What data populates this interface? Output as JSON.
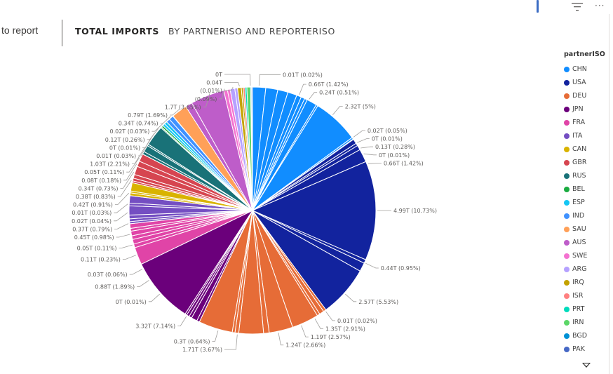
{
  "nav": {
    "back_label": "to report"
  },
  "tabs": [
    {
      "label": "TOTAL IMPORTS"
    },
    {
      "label": "BY PARTNERISO AND REPORTERISO"
    }
  ],
  "icons": {
    "info": "info-icon",
    "filter": "filter-icon",
    "more": "more-options-icon",
    "more_glyph": "···"
  },
  "chart_data": {
    "type": "pie",
    "title": "",
    "legend_title": "partnerISO",
    "legend_position": "right",
    "legend": [
      {
        "name": "CHN",
        "color": "#118DFF"
      },
      {
        "name": "USA",
        "color": "#12239E"
      },
      {
        "name": "DEU",
        "color": "#E66C37"
      },
      {
        "name": "JPN",
        "color": "#6B007B"
      },
      {
        "name": "FRA",
        "color": "#E044A7"
      },
      {
        "name": "ITA",
        "color": "#744EC2"
      },
      {
        "name": "CAN",
        "color": "#D9B300"
      },
      {
        "name": "GBR",
        "color": "#D64550"
      },
      {
        "name": "RUS",
        "color": "#197278"
      },
      {
        "name": "BEL",
        "color": "#1AAB40"
      },
      {
        "name": "ESP",
        "color": "#15C6F4"
      },
      {
        "name": "IND",
        "color": "#4092FF"
      },
      {
        "name": "SAU",
        "color": "#FFA058"
      },
      {
        "name": "AUS",
        "color": "#BE5DC9"
      },
      {
        "name": "SWE",
        "color": "#F472D0"
      },
      {
        "name": "ARG",
        "color": "#B5A1FF"
      },
      {
        "name": "IRQ",
        "color": "#C4A200"
      },
      {
        "name": "ISR",
        "color": "#FF8080"
      },
      {
        "name": "PRT",
        "color": "#00DBBC"
      },
      {
        "name": "IRN",
        "color": "#5BD667"
      },
      {
        "name": "BGD",
        "color": "#0091D5"
      },
      {
        "name": "PAK",
        "color": "#4668C5"
      }
    ],
    "labels": [
      {
        "text": "0T",
        "side": "top",
        "angle": -91
      },
      {
        "text": "0.04T",
        "side": "top",
        "angle": -96
      },
      {
        "text": "(0.01%)",
        "side": "top",
        "angle": -99
      },
      {
        "text": "(0.09%)",
        "side": "top",
        "angle": -103
      },
      {
        "text": "1.7T (3.65%)",
        "side": "left",
        "angle": -110
      },
      {
        "text": "0.79T (1.69%)",
        "side": "left",
        "angle": -126
      },
      {
        "text": "0.34T (0.74%)",
        "side": "left",
        "angle": -131
      },
      {
        "text": "0.02T (0.03%)",
        "side": "left",
        "angle": -136
      },
      {
        "text": "0.12T (0.26%)",
        "side": "left",
        "angle": -139
      },
      {
        "text": "0T (0.01%)",
        "side": "left",
        "angle": -142
      },
      {
        "text": "0.01T (0.03%)",
        "side": "left",
        "angle": -145
      },
      {
        "text": "1.03T (2.21%)",
        "side": "left",
        "angle": -150
      },
      {
        "text": "0.05T (0.11%)",
        "side": "left",
        "angle": -155
      },
      {
        "text": "0.08T (0.18%)",
        "side": "left",
        "angle": -158
      },
      {
        "text": "0.34T (0.73%)",
        "side": "left",
        "angle": -162
      },
      {
        "text": "0.38T (0.83%)",
        "side": "left",
        "angle": -166
      },
      {
        "text": "0.42T (0.91%)",
        "side": "left",
        "angle": -172
      },
      {
        "text": "0.01T (0.03%)",
        "side": "left",
        "angle": -177
      },
      {
        "text": "0.02T (0.04%)",
        "side": "left",
        "angle": 179
      },
      {
        "text": "0.37T (0.79%)",
        "side": "left",
        "angle": 174
      },
      {
        "text": "0.45T (0.98%)",
        "side": "left",
        "angle": 169
      },
      {
        "text": "0.05T (0.11%)",
        "side": "left",
        "angle": 164
      },
      {
        "text": "0.11T (0.23%)",
        "side": "left",
        "angle": 159
      },
      {
        "text": "0.03T (0.06%)",
        "side": "left",
        "angle": 152
      },
      {
        "text": "0.88T (1.89%)",
        "side": "left",
        "angle": 146
      },
      {
        "text": "0T (0.01%)",
        "side": "left",
        "angle": 138
      },
      {
        "text": "3.32T (7.14%)",
        "side": "left",
        "angle": 122
      },
      {
        "text": "0.3T (0.64%)",
        "side": "left",
        "angle": 106
      },
      {
        "text": "1.71T (3.67%)",
        "side": "left",
        "angle": 97
      },
      {
        "text": "1.24T (2.66%)",
        "side": "right",
        "angle": 78
      },
      {
        "text": "1.19T (2.57%)",
        "side": "right",
        "angle": 67
      },
      {
        "text": "1.35T (2.91%)",
        "side": "right",
        "angle": 60
      },
      {
        "text": "0.01T (0.02%)",
        "side": "right",
        "angle": 54
      },
      {
        "text": "2.57T (5.53%)",
        "side": "right",
        "angle": 42
      },
      {
        "text": "0.44T (0.95%)",
        "side": "right",
        "angle": 25
      },
      {
        "text": "4.99T (10.73%)",
        "side": "right",
        "angle": 0
      },
      {
        "text": "0.66T (1.42%)",
        "side": "right",
        "angle": -22
      },
      {
        "text": "0T (0.01%)",
        "side": "right",
        "angle": -27
      },
      {
        "text": "0.13T (0.28%)",
        "side": "right",
        "angle": -30
      },
      {
        "text": "0T (0.01%)",
        "side": "right",
        "angle": -33
      },
      {
        "text": "0.02T (0.05%)",
        "side": "right",
        "angle": -36
      },
      {
        "text": "2.32T (5%)",
        "side": "right",
        "angle": -50
      },
      {
        "text": "0.24T (0.51%)",
        "side": "right",
        "angle": -63
      },
      {
        "text": "0.66T (1.42%)",
        "side": "right",
        "angle": -68
      },
      {
        "text": "0.01T (0.02%)",
        "side": "right",
        "angle": -87
      }
    ],
    "slices": [
      {
        "name": "CHN",
        "value": 1.42,
        "color": "#118DFF"
      },
      {
        "name": "CHN",
        "value": 1.3,
        "color": "#118DFF"
      },
      {
        "name": "CHN",
        "value": 1.1,
        "color": "#118DFF"
      },
      {
        "name": "CHN",
        "value": 1.0,
        "color": "#118DFF"
      },
      {
        "name": "CHN",
        "value": 0.51,
        "color": "#118DFF"
      },
      {
        "name": "CHN",
        "value": 0.4,
        "color": "#118DFF"
      },
      {
        "name": "CHN",
        "value": 0.3,
        "color": "#118DFF"
      },
      {
        "name": "CHN",
        "value": 1.1,
        "color": "#118DFF"
      },
      {
        "name": "CHN",
        "value": 0.2,
        "color": "#118DFF"
      },
      {
        "name": "CHN",
        "value": 5.0,
        "color": "#118DFF"
      },
      {
        "name": "CHN",
        "value": 0.2,
        "color": "#118DFF"
      },
      {
        "name": "USA",
        "value": 0.05,
        "color": "#12239E"
      },
      {
        "name": "USA",
        "value": 0.5,
        "color": "#12239E"
      },
      {
        "name": "USA",
        "value": 0.28,
        "color": "#12239E"
      },
      {
        "name": "USA",
        "value": 0.5,
        "color": "#12239E"
      },
      {
        "name": "USA",
        "value": 1.42,
        "color": "#12239E"
      },
      {
        "name": "USA",
        "value": 10.73,
        "color": "#12239E"
      },
      {
        "name": "USA",
        "value": 0.4,
        "color": "#12239E"
      },
      {
        "name": "USA",
        "value": 0.95,
        "color": "#12239E"
      },
      {
        "name": "USA",
        "value": 5.53,
        "color": "#12239E"
      },
      {
        "name": "DEU",
        "value": 0.3,
        "color": "#E66C37"
      },
      {
        "name": "DEU",
        "value": 0.5,
        "color": "#E66C37"
      },
      {
        "name": "DEU",
        "value": 0.3,
        "color": "#E66C37"
      },
      {
        "name": "DEU",
        "value": 2.91,
        "color": "#E66C37"
      },
      {
        "name": "DEU",
        "value": 2.57,
        "color": "#E66C37"
      },
      {
        "name": "DEU",
        "value": 0.6,
        "color": "#E66C37"
      },
      {
        "name": "DEU",
        "value": 2.66,
        "color": "#E66C37"
      },
      {
        "name": "DEU",
        "value": 0.4,
        "color": "#E66C37"
      },
      {
        "name": "DEU",
        "value": 0.3,
        "color": "#E66C37"
      },
      {
        "name": "DEU",
        "value": 3.67,
        "color": "#E66C37"
      },
      {
        "name": "JPN",
        "value": 0.3,
        "color": "#6B007B"
      },
      {
        "name": "JPN",
        "value": 0.64,
        "color": "#6B007B"
      },
      {
        "name": "JPN",
        "value": 0.3,
        "color": "#6B007B"
      },
      {
        "name": "JPN",
        "value": 0.3,
        "color": "#6B007B"
      },
      {
        "name": "JPN",
        "value": 0.2,
        "color": "#6B007B"
      },
      {
        "name": "JPN",
        "value": 7.14,
        "color": "#6B007B"
      },
      {
        "name": "FRA",
        "value": 1.89,
        "color": "#E044A7"
      },
      {
        "name": "FRA",
        "value": 0.4,
        "color": "#E044A7"
      },
      {
        "name": "FRA",
        "value": 0.5,
        "color": "#E044A7"
      },
      {
        "name": "FRA",
        "value": 0.4,
        "color": "#E044A7"
      },
      {
        "name": "FRA",
        "value": 0.5,
        "color": "#E044A7"
      },
      {
        "name": "FRA",
        "value": 0.3,
        "color": "#E044A7"
      },
      {
        "name": "FRA",
        "value": 0.5,
        "color": "#E044A7"
      },
      {
        "name": "ITA",
        "value": 0.23,
        "color": "#744EC2"
      },
      {
        "name": "ITA",
        "value": 0.3,
        "color": "#744EC2"
      },
      {
        "name": "ITA",
        "value": 0.4,
        "color": "#744EC2"
      },
      {
        "name": "ITA",
        "value": 0.98,
        "color": "#744EC2"
      },
      {
        "name": "ITA",
        "value": 0.3,
        "color": "#744EC2"
      },
      {
        "name": "ITA",
        "value": 0.79,
        "color": "#744EC2"
      },
      {
        "name": "CAN",
        "value": 0.3,
        "color": "#D9B300"
      },
      {
        "name": "CAN",
        "value": 0.2,
        "color": "#D9B300"
      },
      {
        "name": "CAN",
        "value": 0.9,
        "color": "#D9B300"
      },
      {
        "name": "GBR",
        "value": 0.2,
        "color": "#D64550"
      },
      {
        "name": "GBR",
        "value": 0.3,
        "color": "#D64550"
      },
      {
        "name": "GBR",
        "value": 0.4,
        "color": "#D64550"
      },
      {
        "name": "GBR",
        "value": 0.91,
        "color": "#D64550"
      },
      {
        "name": "GBR",
        "value": 0.6,
        "color": "#D64550"
      },
      {
        "name": "GBR",
        "value": 0.83,
        "color": "#D64550"
      },
      {
        "name": "RUS",
        "value": 0.3,
        "color": "#197278"
      },
      {
        "name": "RUS",
        "value": 0.73,
        "color": "#197278"
      },
      {
        "name": "RUS",
        "value": 0.18,
        "color": "#197278"
      },
      {
        "name": "RUS",
        "value": 2.21,
        "color": "#197278"
      },
      {
        "name": "BEL",
        "value": 0.11,
        "color": "#1AAB40"
      },
      {
        "name": "BEL",
        "value": 0.2,
        "color": "#1AAB40"
      },
      {
        "name": "ESP",
        "value": 0.26,
        "color": "#15C6F4"
      },
      {
        "name": "ESP",
        "value": 0.3,
        "color": "#15C6F4"
      },
      {
        "name": "IND",
        "value": 0.4,
        "color": "#4092FF"
      },
      {
        "name": "IND",
        "value": 0.5,
        "color": "#4092FF"
      },
      {
        "name": "SAU",
        "value": 0.03,
        "color": "#FFA058"
      },
      {
        "name": "SAU",
        "value": 1.69,
        "color": "#FFA058"
      },
      {
        "name": "AUS",
        "value": 0.74,
        "color": "#BE5DC9"
      },
      {
        "name": "AUS",
        "value": 3.65,
        "color": "#BE5DC9"
      },
      {
        "name": "SWE",
        "value": 0.4,
        "color": "#F472D0"
      },
      {
        "name": "SWE",
        "value": 0.3,
        "color": "#F472D0"
      },
      {
        "name": "ARG",
        "value": 0.5,
        "color": "#B5A1FF"
      },
      {
        "name": "ARG",
        "value": 0.3,
        "color": "#B5A1FF"
      },
      {
        "name": "IRQ",
        "value": 0.4,
        "color": "#C4A200"
      },
      {
        "name": "IRQ",
        "value": 0.2,
        "color": "#C4A200"
      },
      {
        "name": "ISR",
        "value": 0.2,
        "color": "#FF8080"
      },
      {
        "name": "PRT",
        "value": 0.2,
        "color": "#00DBBC"
      },
      {
        "name": "IRN",
        "value": 0.4,
        "color": "#5BD667"
      },
      {
        "name": "BGD",
        "value": 0.1,
        "color": "#0091D5"
      },
      {
        "name": "PAK",
        "value": 0.1,
        "color": "#4668C5"
      }
    ]
  }
}
